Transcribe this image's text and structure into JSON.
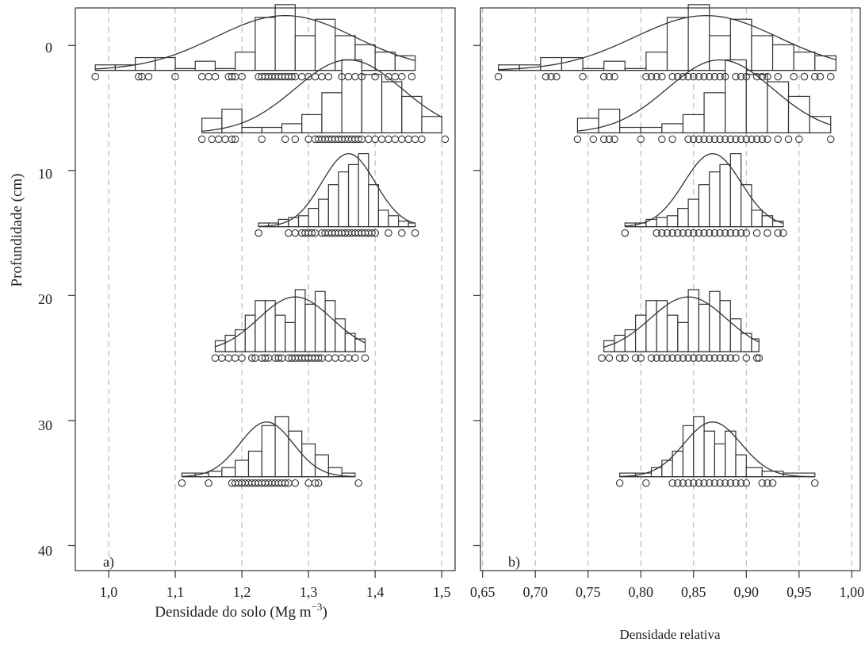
{
  "figure": {
    "ylabel": "Profundidade (cm)",
    "y_ticks": [
      "0",
      "10",
      "20",
      "30",
      "40"
    ]
  },
  "chart_data": [
    {
      "type": "histogram",
      "panel_label": "a)",
      "xlabel_main": "Densidade do solo (Mg m",
      "xlabel_sup": "−3",
      "xlabel_tail": ")",
      "xlim": [
        0.95,
        1.52
      ],
      "x_ticks": [
        1.0,
        1.1,
        1.2,
        1.3,
        1.4,
        1.5
      ],
      "x_tick_labels": [
        "1,0",
        "1,1",
        "1,2",
        "1,3",
        "1,4",
        "1,5"
      ],
      "ylim": [
        -3,
        42
      ],
      "y_ticks": [
        0,
        10,
        20,
        30,
        40
      ],
      "grid_x": true,
      "groups": [
        {
          "depth": 2.5,
          "bin_edges": [
            0.98,
            1.01,
            1.04,
            1.07,
            1.1,
            1.13,
            1.16,
            1.19,
            1.22,
            1.25,
            1.28,
            1.31,
            1.34,
            1.37,
            1.4,
            1.43,
            1.46
          ],
          "heights": [
            0.3,
            0.3,
            0.7,
            0.7,
            0.1,
            0.5,
            0.1,
            1.0,
            2.9,
            3.6,
            1.9,
            2.8,
            1.9,
            1.4,
            1.0,
            0.8
          ],
          "mean": 1.265,
          "sd": 0.105,
          "peak": 3.0,
          "points": [
            0.98,
            1.045,
            1.05,
            1.06,
            1.1,
            1.14,
            1.15,
            1.16,
            1.18,
            1.185,
            1.19,
            1.2,
            1.225,
            1.23,
            1.235,
            1.24,
            1.245,
            1.25,
            1.255,
            1.26,
            1.265,
            1.27,
            1.275,
            1.28,
            1.29,
            1.3,
            1.31,
            1.32,
            1.33,
            1.35,
            1.36,
            1.37,
            1.38,
            1.4,
            1.42,
            1.43,
            1.44,
            1.455
          ]
        },
        {
          "depth": 7.5,
          "bin_edges": [
            1.14,
            1.17,
            1.2,
            1.23,
            1.26,
            1.29,
            1.32,
            1.35,
            1.38,
            1.41,
            1.44,
            1.47,
            1.5
          ],
          "heights": [
            0.8,
            1.3,
            0.3,
            0.3,
            0.5,
            1.0,
            2.2,
            4.0,
            3.2,
            2.8,
            2.0,
            0.9
          ],
          "mean": 1.36,
          "sd": 0.08,
          "peak": 4.0,
          "points": [
            1.14,
            1.155,
            1.165,
            1.175,
            1.185,
            1.19,
            1.23,
            1.265,
            1.28,
            1.3,
            1.31,
            1.315,
            1.32,
            1.325,
            1.33,
            1.335,
            1.34,
            1.345,
            1.35,
            1.355,
            1.36,
            1.365,
            1.37,
            1.375,
            1.38,
            1.39,
            1.4,
            1.41,
            1.42,
            1.43,
            1.44,
            1.45,
            1.46,
            1.47,
            1.505
          ]
        },
        {
          "depth": 15,
          "bin_edges": [
            1.225,
            1.24,
            1.255,
            1.27,
            1.285,
            1.3,
            1.315,
            1.33,
            1.345,
            1.36,
            1.375,
            1.39,
            1.405,
            1.42,
            1.435,
            1.45,
            1.46
          ],
          "heights": [
            0.2,
            0.2,
            0.4,
            0.5,
            0.6,
            1.0,
            1.5,
            2.3,
            3.0,
            3.4,
            4.0,
            2.3,
            0.9,
            0.6,
            0.3,
            0.2
          ],
          "mean": 1.36,
          "sd": 0.04,
          "peak": 4.0,
          "points": [
            1.225,
            1.27,
            1.28,
            1.29,
            1.295,
            1.3,
            1.305,
            1.31,
            1.32,
            1.325,
            1.33,
            1.335,
            1.34,
            1.345,
            1.35,
            1.355,
            1.36,
            1.365,
            1.37,
            1.375,
            1.38,
            1.385,
            1.39,
            1.395,
            1.4,
            1.42,
            1.44,
            1.46
          ]
        },
        {
          "depth": 25,
          "bin_edges": [
            1.16,
            1.175,
            1.19,
            1.205,
            1.22,
            1.235,
            1.25,
            1.265,
            1.28,
            1.295,
            1.31,
            1.325,
            1.34,
            1.355,
            1.37,
            1.385
          ],
          "heights": [
            0.6,
            0.9,
            1.2,
            2.0,
            2.8,
            2.8,
            2.0,
            1.6,
            3.4,
            2.6,
            3.3,
            2.8,
            1.8,
            1.0,
            0.7
          ],
          "mean": 1.28,
          "sd": 0.055,
          "peak": 3.0,
          "points": [
            1.16,
            1.17,
            1.18,
            1.19,
            1.2,
            1.215,
            1.22,
            1.23,
            1.235,
            1.24,
            1.25,
            1.255,
            1.26,
            1.27,
            1.275,
            1.28,
            1.285,
            1.29,
            1.295,
            1.3,
            1.305,
            1.31,
            1.315,
            1.32,
            1.33,
            1.34,
            1.35,
            1.36,
            1.37,
            1.385
          ]
        },
        {
          "depth": 35,
          "bin_edges": [
            1.11,
            1.13,
            1.15,
            1.17,
            1.19,
            1.21,
            1.23,
            1.25,
            1.27,
            1.29,
            1.31,
            1.33,
            1.35,
            1.37
          ],
          "heights": [
            0.2,
            0.2,
            0.3,
            0.5,
            0.9,
            1.4,
            2.8,
            3.3,
            2.5,
            1.8,
            1.2,
            0.5,
            0.2
          ],
          "mean": 1.237,
          "sd": 0.04,
          "peak": 3.0,
          "points": [
            1.11,
            1.15,
            1.185,
            1.19,
            1.195,
            1.2,
            1.205,
            1.21,
            1.215,
            1.22,
            1.225,
            1.23,
            1.235,
            1.24,
            1.245,
            1.25,
            1.255,
            1.26,
            1.265,
            1.27,
            1.28,
            1.3,
            1.31,
            1.315,
            1.375
          ]
        }
      ]
    },
    {
      "type": "histogram",
      "panel_label": "b)",
      "xlabel_main": "Densidade relativa",
      "xlim": [
        0.648,
        1.008
      ],
      "x_ticks": [
        0.65,
        0.7,
        0.75,
        0.8,
        0.85,
        0.9,
        0.95,
        1.0
      ],
      "x_tick_labels": [
        "0,65",
        "0,70",
        "0,75",
        "0,80",
        "0,85",
        "0,90",
        "0,95",
        "1,00"
      ],
      "ylim": [
        -3,
        42
      ],
      "y_ticks": [
        0,
        10,
        20,
        30,
        40
      ],
      "grid_x": true,
      "groups": [
        {
          "depth": 2.5,
          "bin_edges": [
            0.665,
            0.685,
            0.705,
            0.725,
            0.745,
            0.765,
            0.785,
            0.805,
            0.825,
            0.845,
            0.865,
            0.885,
            0.905,
            0.925,
            0.945,
            0.965,
            0.985
          ],
          "heights": [
            0.3,
            0.3,
            0.7,
            0.7,
            0.1,
            0.5,
            0.1,
            1.0,
            2.9,
            3.6,
            1.9,
            2.8,
            1.9,
            1.4,
            1.0,
            0.8
          ],
          "mean": 0.862,
          "sd": 0.068,
          "peak": 3.0,
          "points": [
            0.665,
            0.71,
            0.715,
            0.72,
            0.745,
            0.765,
            0.77,
            0.775,
            0.805,
            0.81,
            0.815,
            0.82,
            0.83,
            0.835,
            0.84,
            0.845,
            0.85,
            0.855,
            0.86,
            0.865,
            0.87,
            0.875,
            0.88,
            0.89,
            0.895,
            0.9,
            0.91,
            0.915,
            0.92,
            0.93,
            0.945,
            0.955,
            0.965,
            0.97,
            0.98
          ]
        },
        {
          "depth": 7.5,
          "bin_edges": [
            0.74,
            0.76,
            0.78,
            0.8,
            0.82,
            0.84,
            0.86,
            0.88,
            0.9,
            0.92,
            0.94,
            0.96,
            0.98
          ],
          "heights": [
            0.8,
            1.3,
            0.3,
            0.3,
            0.5,
            1.0,
            2.2,
            4.0,
            3.2,
            2.8,
            2.0,
            0.9
          ],
          "mean": 0.875,
          "sd": 0.05,
          "peak": 4.0,
          "points": [
            0.74,
            0.755,
            0.765,
            0.77,
            0.775,
            0.8,
            0.82,
            0.83,
            0.845,
            0.85,
            0.855,
            0.86,
            0.865,
            0.87,
            0.875,
            0.88,
            0.885,
            0.89,
            0.895,
            0.9,
            0.905,
            0.91,
            0.915,
            0.92,
            0.93,
            0.94,
            0.95,
            0.98
          ]
        },
        {
          "depth": 15,
          "bin_edges": [
            0.785,
            0.795,
            0.805,
            0.815,
            0.825,
            0.835,
            0.845,
            0.855,
            0.865,
            0.875,
            0.885,
            0.895,
            0.905,
            0.915,
            0.925,
            0.935
          ],
          "heights": [
            0.2,
            0.2,
            0.4,
            0.5,
            0.6,
            1.0,
            1.5,
            2.3,
            3.0,
            3.4,
            4.0,
            2.3,
            0.9,
            0.6,
            0.3
          ],
          "mean": 0.868,
          "sd": 0.027,
          "peak": 4.0,
          "points": [
            0.785,
            0.815,
            0.82,
            0.825,
            0.83,
            0.835,
            0.84,
            0.845,
            0.85,
            0.855,
            0.86,
            0.865,
            0.87,
            0.875,
            0.88,
            0.885,
            0.89,
            0.895,
            0.9,
            0.91,
            0.92,
            0.93,
            0.935
          ]
        },
        {
          "depth": 25,
          "bin_edges": [
            0.765,
            0.775,
            0.785,
            0.795,
            0.805,
            0.815,
            0.825,
            0.835,
            0.845,
            0.855,
            0.865,
            0.875,
            0.885,
            0.895,
            0.905,
            0.912
          ],
          "heights": [
            0.6,
            0.9,
            1.2,
            2.0,
            2.8,
            2.8,
            2.0,
            1.6,
            3.4,
            2.6,
            3.3,
            2.8,
            1.8,
            1.0,
            0.7
          ],
          "mean": 0.845,
          "sd": 0.036,
          "peak": 3.0,
          "points": [
            0.763,
            0.77,
            0.78,
            0.785,
            0.795,
            0.8,
            0.81,
            0.815,
            0.82,
            0.825,
            0.83,
            0.835,
            0.84,
            0.845,
            0.85,
            0.855,
            0.86,
            0.865,
            0.87,
            0.875,
            0.88,
            0.885,
            0.89,
            0.9,
            0.91,
            0.912
          ]
        },
        {
          "depth": 35,
          "bin_edges": [
            0.78,
            0.795,
            0.81,
            0.82,
            0.83,
            0.84,
            0.85,
            0.86,
            0.87,
            0.88,
            0.89,
            0.9,
            0.915,
            0.935,
            0.965
          ],
          "heights": [
            0.2,
            0.2,
            0.5,
            0.9,
            1.4,
            2.8,
            3.3,
            2.5,
            1.8,
            2.5,
            1.2,
            0.5,
            0.3,
            0.2
          ],
          "mean": 0.868,
          "sd": 0.027,
          "peak": 3.0,
          "points": [
            0.78,
            0.805,
            0.83,
            0.835,
            0.84,
            0.845,
            0.85,
            0.855,
            0.86,
            0.865,
            0.87,
            0.875,
            0.88,
            0.885,
            0.89,
            0.895,
            0.9,
            0.915,
            0.92,
            0.925,
            0.965
          ]
        }
      ]
    }
  ]
}
